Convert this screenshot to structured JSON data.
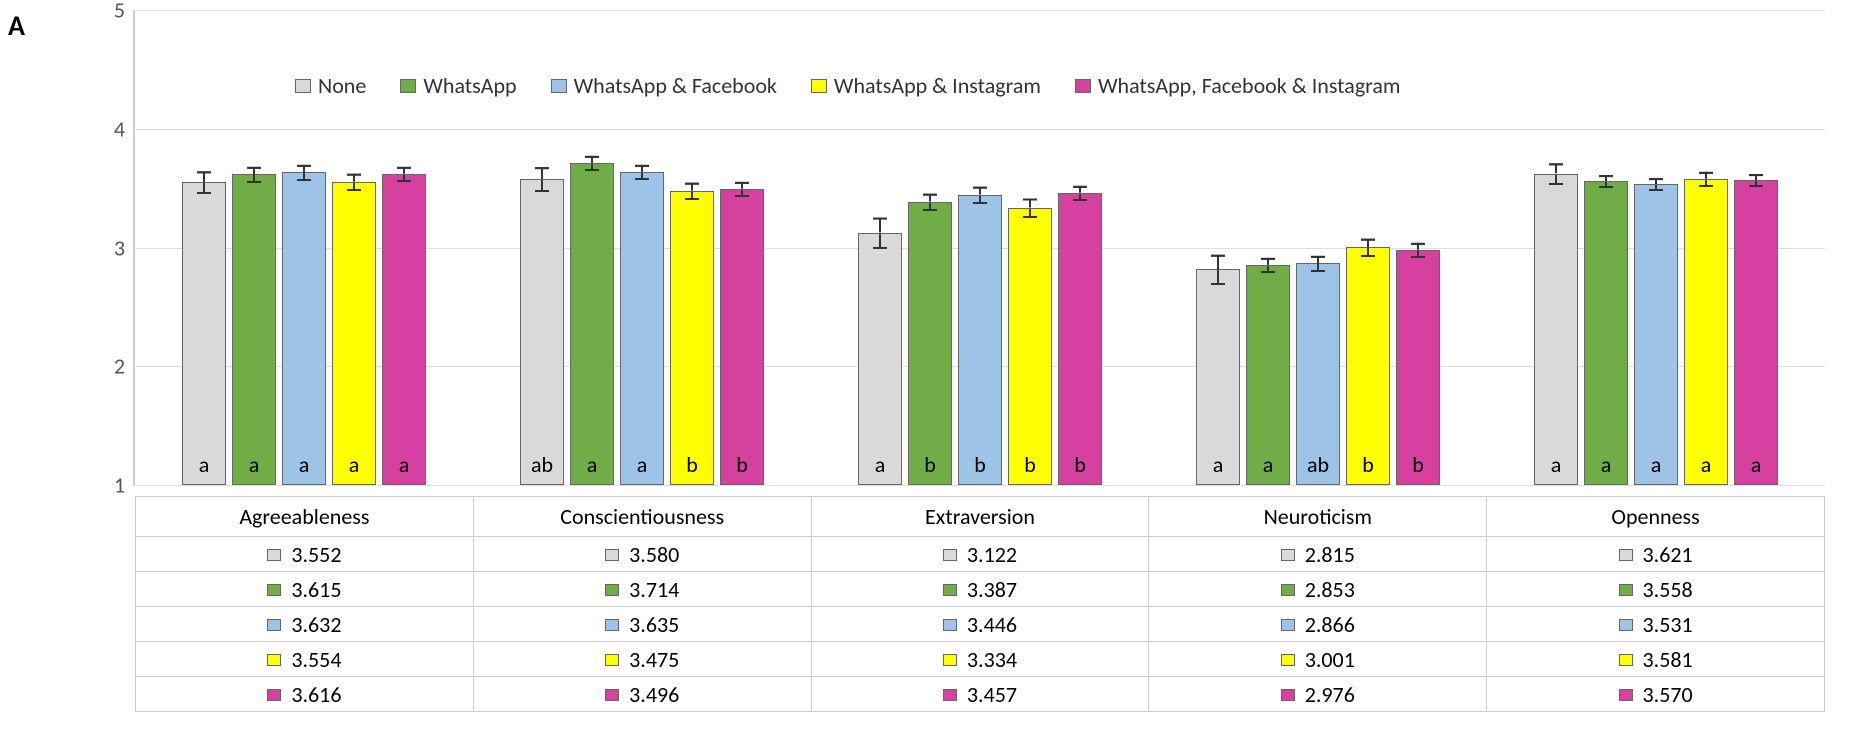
{
  "panel_label": "A",
  "chart": {
    "type": "bar",
    "ylim": [
      1,
      5
    ],
    "ytick_step": 1,
    "yticks": [
      1,
      2,
      3,
      4,
      5
    ],
    "colors": {
      "none": "#d9d9d9",
      "whatsapp": "#70ad47",
      "wa_fb": "#9dc3e6",
      "wa_ig": "#ffff00",
      "wa_fb_ig": "#d6409f"
    },
    "grid_color": "#dedede",
    "axis_fontsize": 22,
    "legend_fontsize": 22,
    "series": [
      {
        "key": "none",
        "label": "None"
      },
      {
        "key": "whatsapp",
        "label": "WhatsApp"
      },
      {
        "key": "wa_fb",
        "label": "WhatsApp & Facebook"
      },
      {
        "key": "wa_ig",
        "label": "WhatsApp & Instagram"
      },
      {
        "key": "wa_fb_ig",
        "label": "WhatsApp, Facebook & Instagram"
      }
    ],
    "categories": [
      {
        "name": "Agreeableness",
        "values": [
          3.552,
          3.615,
          3.632,
          3.554,
          3.616
        ],
        "errors": [
          0.09,
          0.06,
          0.06,
          0.07,
          0.06
        ],
        "letters": [
          "a",
          "a",
          "a",
          "a",
          "a"
        ]
      },
      {
        "name": "Conscientiousness",
        "values": [
          3.58,
          3.714,
          3.635,
          3.475,
          3.496
        ],
        "errors": [
          0.1,
          0.06,
          0.06,
          0.07,
          0.06
        ],
        "letters": [
          "ab",
          "a",
          "a",
          "b",
          "b"
        ]
      },
      {
        "name": "Extraversion",
        "values": [
          3.122,
          3.387,
          3.446,
          3.334,
          3.457
        ],
        "errors": [
          0.13,
          0.07,
          0.07,
          0.08,
          0.06
        ],
        "letters": [
          "a",
          "b",
          "b",
          "b",
          "b"
        ]
      },
      {
        "name": "Neuroticism",
        "values": [
          2.815,
          2.853,
          2.866,
          3.001,
          2.976
        ],
        "errors": [
          0.12,
          0.06,
          0.06,
          0.07,
          0.06
        ],
        "letters": [
          "a",
          "a",
          "ab",
          "b",
          "b"
        ]
      },
      {
        "name": "Openness",
        "values": [
          3.621,
          3.558,
          3.531,
          3.581,
          3.57
        ],
        "errors": [
          0.09,
          0.05,
          0.05,
          0.06,
          0.05
        ],
        "letters": [
          "a",
          "a",
          "a",
          "a",
          "a"
        ]
      }
    ]
  }
}
